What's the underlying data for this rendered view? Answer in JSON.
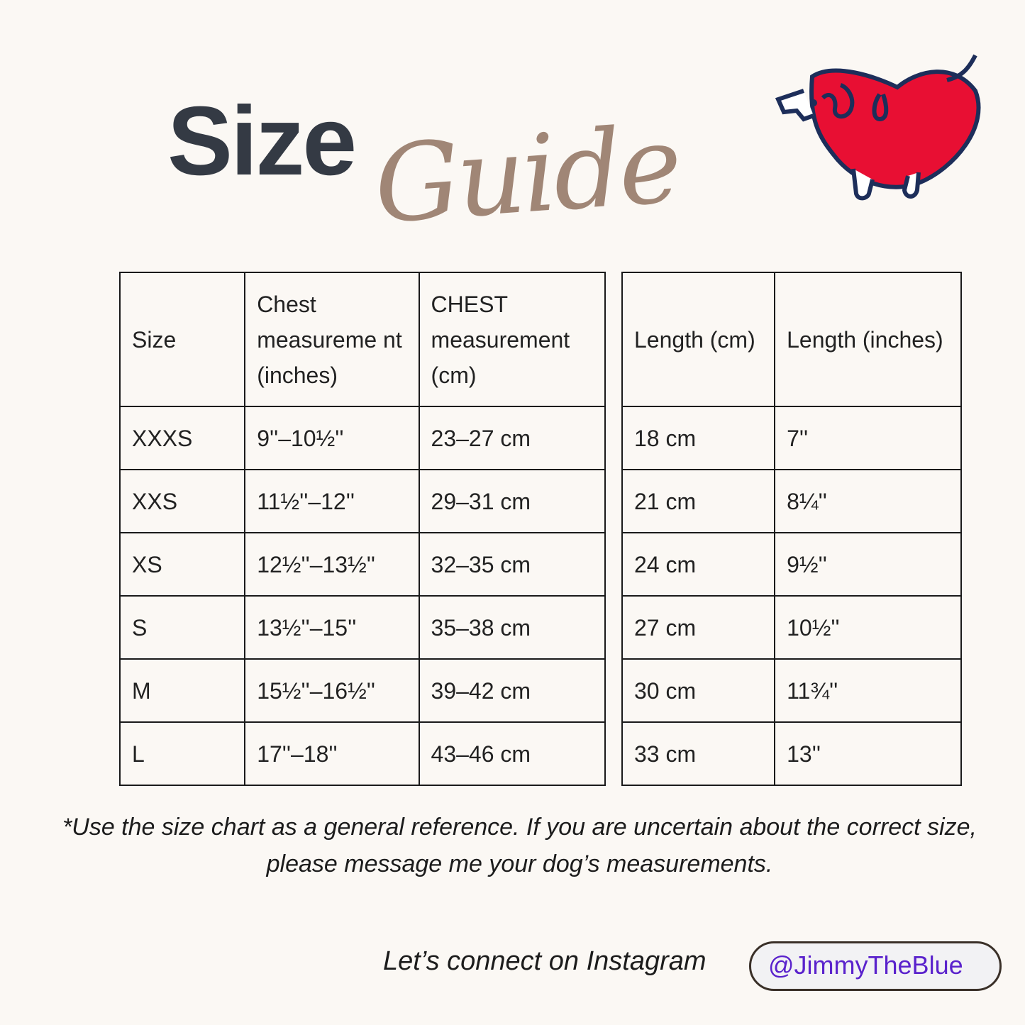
{
  "title": {
    "word1": "Size",
    "word2": "Guide"
  },
  "logo": {
    "icon": "heart-dog-logo",
    "colors": {
      "fill": "#e80f33",
      "outline": "#1d2e5a"
    }
  },
  "table_left": {
    "headers": [
      "Size",
      "Chest measureme nt  (inches)",
      "CHEST measurement (cm)"
    ],
    "rows": [
      [
        "XXXS",
        "9''–10½''",
        "23–27 cm"
      ],
      [
        "XXS",
        "11½''–12''",
        "29–31 cm"
      ],
      [
        "XS",
        "12½''–13½''",
        "32–35 cm"
      ],
      [
        "S",
        "13½''–15''",
        "35–38 cm"
      ],
      [
        "M",
        "15½''–16½''",
        "39–42 cm"
      ],
      [
        "L",
        "17''–18''",
        "43–46 cm"
      ]
    ]
  },
  "table_right": {
    "headers": [
      "Length (cm)",
      "Length (inches)"
    ],
    "rows": [
      [
        "18 cm",
        "7''"
      ],
      [
        "21 cm",
        "8¼''"
      ],
      [
        "24 cm",
        "9½''"
      ],
      [
        "27 cm",
        "10½''"
      ],
      [
        "30 cm",
        "11¾''"
      ],
      [
        "33 cm",
        "13''"
      ]
    ]
  },
  "note": "*Use the size chart as a general reference. If you are uncertain about the correct size, please message me your dog’s measurements.",
  "footer": {
    "connect": "Let’s connect on Instagram",
    "handle": "@JimmyTheBlue",
    "handle_color": "#5a22cc"
  }
}
